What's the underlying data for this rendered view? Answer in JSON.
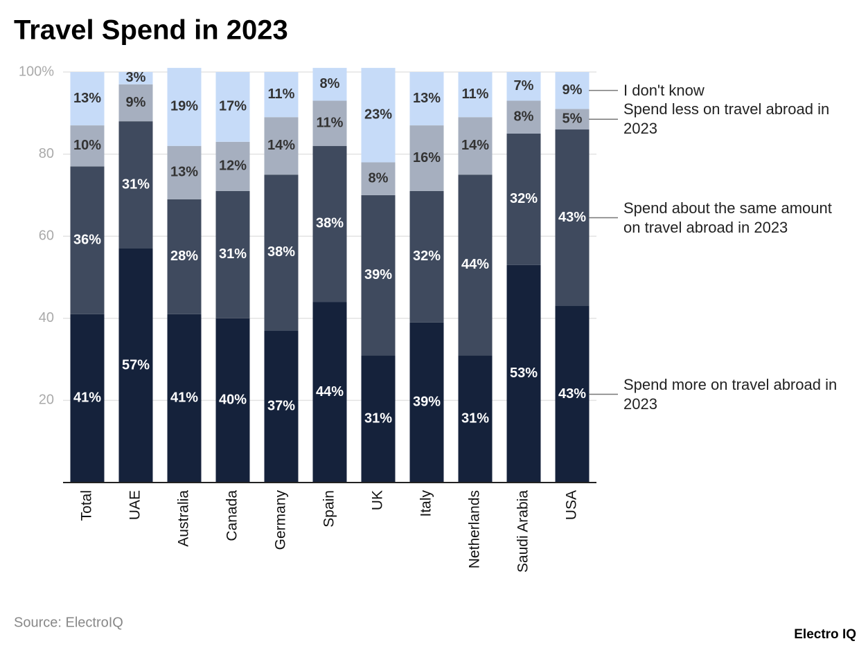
{
  "chart_data": {
    "type": "stacked_bar",
    "title": "Travel Spend in 2023",
    "categories": [
      "Total",
      "UAE",
      "Australia",
      "Canada",
      "Germany",
      "Spain",
      "UK",
      "Italy",
      "Netherlands",
      "Saudi Arabia",
      "USA"
    ],
    "series": [
      {
        "name": "Spend more on travel abroad in 2023",
        "color": "#15223b",
        "values": [
          41,
          57,
          41,
          40,
          37,
          44,
          31,
          39,
          31,
          53,
          43
        ],
        "value_labels": [
          "41%",
          "57%",
          "41%",
          "40%",
          "37%",
          "44%",
          "31%",
          "39%",
          "31%",
          "53%",
          "43%"
        ]
      },
      {
        "name": "Spend about the same amount on travel abroad in 2023",
        "color": "#3f4a5e",
        "values": [
          36,
          31,
          28,
          31,
          38,
          38,
          39,
          32,
          44,
          32,
          43
        ],
        "value_labels": [
          "36%",
          "31%",
          "28%",
          "31%",
          "38%",
          "38%",
          "39%",
          "32%",
          "44%",
          "32%",
          "43%"
        ]
      },
      {
        "name": "Spend less on travel abroad in 2023",
        "color": "#a6afbf",
        "values": [
          10,
          9,
          13,
          12,
          14,
          11,
          8,
          16,
          14,
          8,
          5
        ],
        "value_labels": [
          "10%",
          "9%",
          "13%",
          "12%",
          "14%",
          "11%",
          "8%",
          "16%",
          "14%",
          "8%",
          "5%"
        ]
      },
      {
        "name": "I don't know",
        "color": "#c6dbf8",
        "values": [
          13,
          3,
          19,
          17,
          11,
          8,
          23,
          13,
          11,
          7,
          9
        ],
        "value_labels": [
          "13%",
          "3%",
          "19%",
          "17%",
          "11%",
          "8%",
          "23%",
          "13%",
          "11%",
          "7%",
          "9%"
        ]
      }
    ],
    "ylim": [
      0,
      100
    ],
    "yticks": [
      20,
      40,
      60,
      80,
      {
        "value": 100,
        "label": "100%"
      }
    ],
    "grid": true,
    "source": "Source: ElectroIQ",
    "logo": "Electro IQ"
  }
}
